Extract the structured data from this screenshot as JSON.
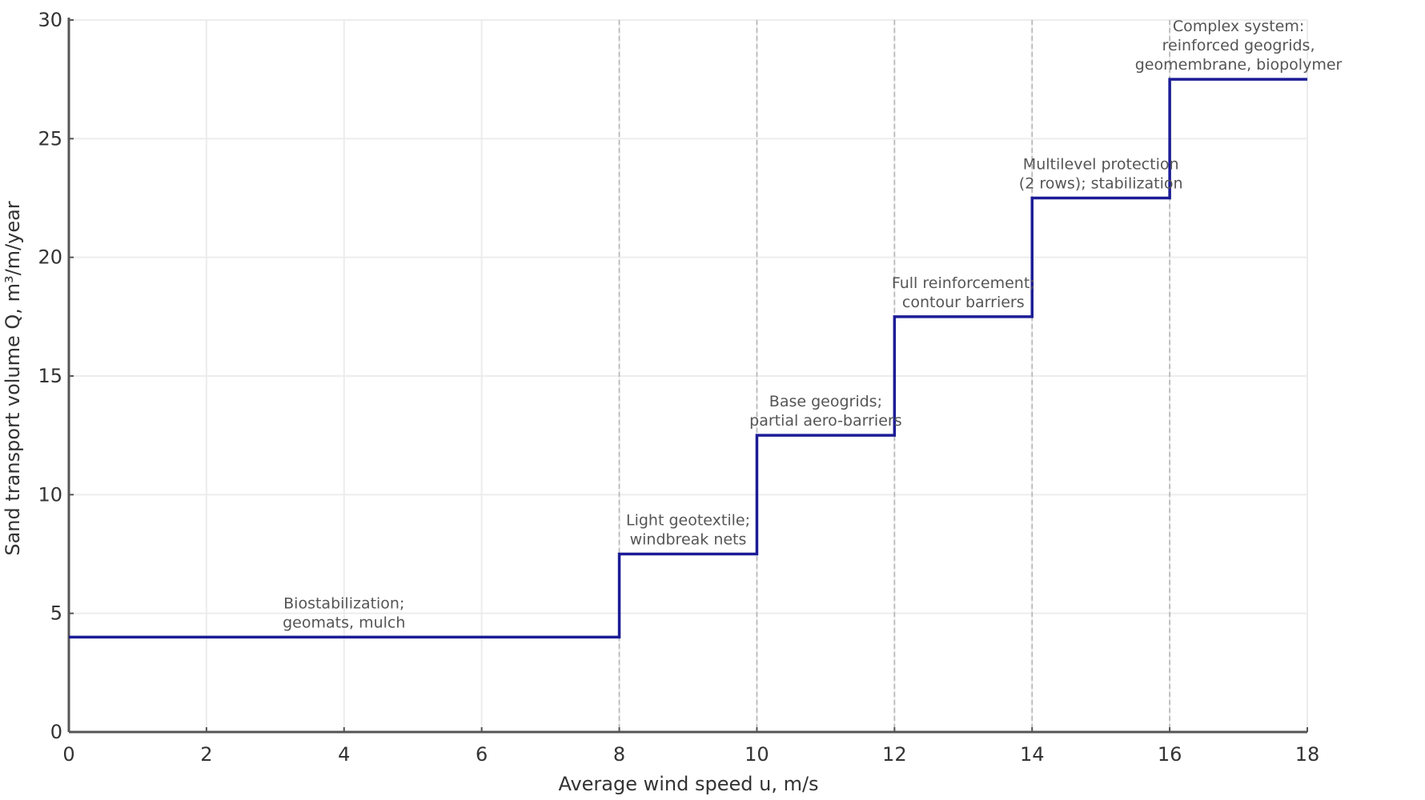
{
  "chart_data": {
    "type": "line",
    "step": "post",
    "title": "",
    "xlabel": "Average wind speed u, m/s",
    "ylabel": "Sand transport volume Q, m³/m/year",
    "xlim": [
      0,
      18
    ],
    "ylim": [
      0,
      30
    ],
    "xticks": [
      0,
      2,
      4,
      6,
      8,
      10,
      12,
      14,
      16,
      18
    ],
    "yticks": [
      0,
      5,
      10,
      15,
      20,
      25,
      30
    ],
    "grid": true,
    "line_color": "#1c1c96",
    "threshold_lines": [
      8,
      10,
      12,
      14,
      16
    ],
    "series": [
      {
        "x": [
          0,
          8,
          10,
          12,
          14,
          16,
          18
        ],
        "y": [
          4,
          7.5,
          12.5,
          17.5,
          22.5,
          27.5,
          27.5
        ]
      }
    ],
    "annotations": [
      {
        "x": 4,
        "y": 4,
        "lines": [
          "Biostabilization;",
          "geomats, mulch"
        ]
      },
      {
        "x": 9,
        "y": 7.5,
        "lines": [
          "Light geotextile;",
          "windbreak nets"
        ]
      },
      {
        "x": 11,
        "y": 12.5,
        "lines": [
          "Base geogrids;",
          "partial aero-barriers"
        ]
      },
      {
        "x": 13,
        "y": 17.5,
        "lines": [
          "Full reinforcement;",
          "contour barriers"
        ]
      },
      {
        "x": 15,
        "y": 22.5,
        "lines": [
          "Multilevel protection",
          "(2 rows); stabilization"
        ]
      },
      {
        "x": 17,
        "y": 27.5,
        "lines": [
          "Complex system:",
          "reinforced geogrids,",
          "geomembrane, biopolymer"
        ]
      }
    ]
  }
}
